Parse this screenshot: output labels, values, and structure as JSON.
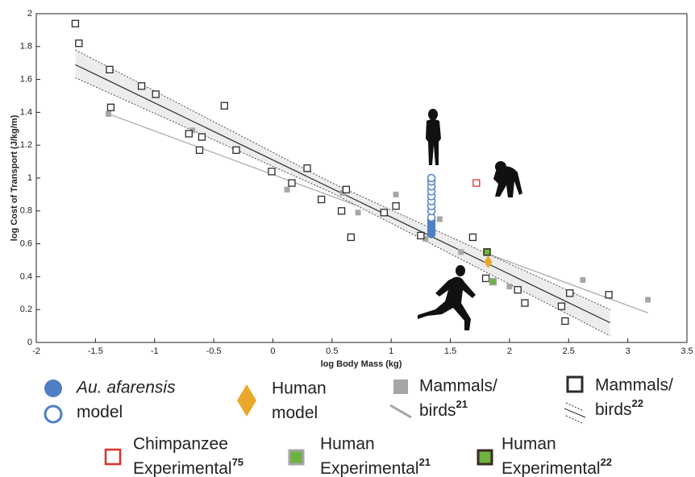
{
  "chart_data": {
    "type": "scatter",
    "x_label": "log Body Mass (kg)",
    "y_label": "log Cost of Transport (J/kg/m)",
    "xlim": [
      -2,
      3.5
    ],
    "ylim": [
      0,
      2
    ],
    "xticks": [
      -2,
      -1.5,
      -1,
      -0.5,
      0,
      0.5,
      1,
      1.5,
      2,
      2.5,
      3,
      3.5
    ],
    "yticks": [
      0,
      0.2,
      0.4,
      0.6,
      0.8,
      1,
      1.2,
      1.4,
      1.6,
      1.8,
      2
    ],
    "series": [
      {
        "name": [
          "Au. afarensis",
          "model"
        ],
        "color": "#4f7fc4",
        "marker": "circle",
        "x": [
          1.34,
          1.34,
          1.34,
          1.34,
          1.34,
          1.34,
          1.34,
          1.34,
          1.34,
          1.34,
          1.34,
          1.34,
          1.34,
          1.34
        ],
        "values": [
          0.66,
          0.68,
          0.7,
          0.72,
          0.74,
          0.76,
          0.8,
          0.83,
          0.86,
          0.89,
          0.92,
          0.95,
          0.98,
          1.0
        ],
        "fill": [
          "filled",
          "filled",
          "filled",
          "filled",
          "filled",
          "open",
          "open",
          "open",
          "open",
          "open",
          "open",
          "open",
          "open",
          "open"
        ]
      },
      {
        "name": [
          "Human",
          "model"
        ],
        "color": "#e8a92a",
        "marker": "diamond",
        "x": [
          1.82
        ],
        "values": [
          0.49
        ]
      },
      {
        "name": [
          "Mammals/",
          "birds"
        ],
        "superscript": "21",
        "color": "#a6a6a6",
        "marker": "filled-square",
        "x": [
          -1.39,
          -0.68,
          0.12,
          0.59,
          0.72,
          1.04,
          1.41,
          1.29,
          1.59,
          2.0,
          2.62,
          3.17
        ],
        "values": [
          1.39,
          1.29,
          0.93,
          0.91,
          0.79,
          0.9,
          0.75,
          0.63,
          0.55,
          0.34,
          0.38,
          0.26
        ],
        "fit": {
          "x": [
            -1.39,
            3.17
          ],
          "values": [
            1.39,
            0.18
          ]
        }
      },
      {
        "name": [
          "Mammals/",
          "birds"
        ],
        "superscript": "22",
        "color": "#2b2b2b",
        "marker": "open-square",
        "x": [
          -1.67,
          -1.64,
          -1.38,
          -1.11,
          -0.99,
          -1.37,
          -0.41,
          -0.71,
          -0.6,
          -0.62,
          -0.31,
          -0.01,
          0.29,
          0.16,
          0.41,
          0.62,
          0.58,
          0.66,
          0.94,
          1.04,
          1.25,
          1.69,
          1.8,
          2.07,
          2.13,
          2.44,
          2.47,
          2.51,
          2.84
        ],
        "values": [
          1.94,
          1.82,
          1.66,
          1.56,
          1.51,
          1.43,
          1.44,
          1.27,
          1.25,
          1.17,
          1.17,
          1.04,
          1.06,
          0.97,
          0.87,
          0.93,
          0.8,
          0.64,
          0.79,
          0.83,
          0.65,
          0.64,
          0.39,
          0.32,
          0.24,
          0.22,
          0.13,
          0.3,
          0.29
        ],
        "fit": {
          "x": [
            -1.67,
            2.85
          ],
          "values": [
            1.69,
            0.12
          ]
        },
        "band": {
          "x": [
            -1.67,
            0.5,
            2.85
          ],
          "upper": [
            1.78,
            0.97,
            0.2
          ],
          "lower": [
            1.61,
            0.91,
            0.04
          ]
        }
      },
      {
        "name": [
          "Chimpanzee",
          "Experimental"
        ],
        "superscript": "75",
        "color": "#e0302a",
        "marker": "open-square",
        "x": [
          1.72
        ],
        "values": [
          0.97
        ]
      },
      {
        "name": [
          "Human",
          "Experimental"
        ],
        "superscript": "21",
        "color": "#6cb33f",
        "edge": "#a6a6a6",
        "marker": "edged-square",
        "x": [
          1.86
        ],
        "values": [
          0.37
        ]
      },
      {
        "name": [
          "Human",
          "Experimental"
        ],
        "superscript": "22",
        "color": "#6cb33f",
        "edge": "#3a2a22",
        "marker": "edged-square",
        "x": [
          1.81
        ],
        "values": [
          0.55
        ]
      }
    ]
  }
}
